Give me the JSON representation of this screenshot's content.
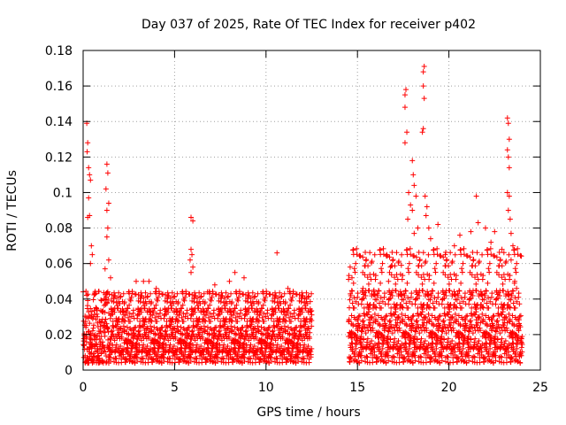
{
  "chart_data": {
    "type": "scatter",
    "title": "Day 037 of 2025, Rate Of TEC Index for receiver p402",
    "xlabel": "GPS time / hours",
    "ylabel": "ROTI / TECUs",
    "xlim": [
      0,
      25
    ],
    "ylim": [
      0,
      0.18
    ],
    "x_ticks": [
      0,
      5,
      10,
      15,
      20,
      25
    ],
    "x_tick_labels": [
      "0",
      "5",
      "10",
      "15",
      "20",
      "25"
    ],
    "y_ticks": [
      0,
      0.02,
      0.04,
      0.06,
      0.08,
      0.1,
      0.12,
      0.14,
      0.16,
      0.18
    ],
    "y_tick_labels": [
      "0",
      "0.02",
      "0.04",
      "0.06",
      "0.08",
      "0.1",
      "0.12",
      "0.14",
      "0.16",
      "0.18"
    ],
    "grid": true,
    "marker": "+",
    "marker_color": "#ff0000",
    "data_gap_hours": [
      12.5,
      14.5
    ],
    "series": [
      {
        "name": "ROTI",
        "segments": [
          {
            "x_start": 0.0,
            "x_end": 12.5,
            "baseline_range": [
              0.004,
              0.035
            ],
            "typical_max": 0.045
          },
          {
            "x_start": 14.5,
            "x_end": 24.0,
            "baseline_range": [
              0.004,
              0.045
            ],
            "typical_max": 0.07
          }
        ],
        "outliers": [
          {
            "x": 0.2,
            "y": 0.139
          },
          {
            "x": 0.25,
            "y": 0.128
          },
          {
            "x": 0.22,
            "y": 0.123
          },
          {
            "x": 0.3,
            "y": 0.114
          },
          {
            "x": 0.35,
            "y": 0.11
          },
          {
            "x": 0.4,
            "y": 0.107
          },
          {
            "x": 0.3,
            "y": 0.097
          },
          {
            "x": 0.35,
            "y": 0.087
          },
          {
            "x": 0.25,
            "y": 0.086
          },
          {
            "x": 0.45,
            "y": 0.07
          },
          {
            "x": 0.5,
            "y": 0.065
          },
          {
            "x": 0.4,
            "y": 0.06
          },
          {
            "x": 1.3,
            "y": 0.116
          },
          {
            "x": 1.35,
            "y": 0.111
          },
          {
            "x": 1.25,
            "y": 0.102
          },
          {
            "x": 1.4,
            "y": 0.094
          },
          {
            "x": 1.3,
            "y": 0.09
          },
          {
            "x": 1.35,
            "y": 0.08
          },
          {
            "x": 1.3,
            "y": 0.075
          },
          {
            "x": 1.4,
            "y": 0.062
          },
          {
            "x": 1.2,
            "y": 0.057
          },
          {
            "x": 1.5,
            "y": 0.052
          },
          {
            "x": 2.9,
            "y": 0.05
          },
          {
            "x": 3.3,
            "y": 0.05
          },
          {
            "x": 3.6,
            "y": 0.05
          },
          {
            "x": 4.0,
            "y": 0.046
          },
          {
            "x": 5.9,
            "y": 0.086
          },
          {
            "x": 6.0,
            "y": 0.084
          },
          {
            "x": 5.9,
            "y": 0.068
          },
          {
            "x": 5.95,
            "y": 0.065
          },
          {
            "x": 5.85,
            "y": 0.062
          },
          {
            "x": 6.0,
            "y": 0.058
          },
          {
            "x": 5.9,
            "y": 0.055
          },
          {
            "x": 6.8,
            "y": 0.044
          },
          {
            "x": 7.2,
            "y": 0.048
          },
          {
            "x": 8.0,
            "y": 0.05
          },
          {
            "x": 8.3,
            "y": 0.055
          },
          {
            "x": 8.8,
            "y": 0.052
          },
          {
            "x": 10.6,
            "y": 0.066
          },
          {
            "x": 11.2,
            "y": 0.046
          },
          {
            "x": 12.2,
            "y": 0.04
          },
          {
            "x": 14.6,
            "y": 0.058
          },
          {
            "x": 14.7,
            "y": 0.052
          },
          {
            "x": 15.3,
            "y": 0.046
          },
          {
            "x": 15.9,
            "y": 0.045
          },
          {
            "x": 16.6,
            "y": 0.065
          },
          {
            "x": 16.8,
            "y": 0.058
          },
          {
            "x": 16.7,
            "y": 0.05
          },
          {
            "x": 17.4,
            "y": 0.059
          },
          {
            "x": 17.6,
            "y": 0.155
          },
          {
            "x": 17.65,
            "y": 0.158
          },
          {
            "x": 17.6,
            "y": 0.148
          },
          {
            "x": 17.7,
            "y": 0.134
          },
          {
            "x": 17.6,
            "y": 0.128
          },
          {
            "x": 17.8,
            "y": 0.1
          },
          {
            "x": 17.9,
            "y": 0.093
          },
          {
            "x": 17.75,
            "y": 0.085
          },
          {
            "x": 18.0,
            "y": 0.118
          },
          {
            "x": 18.05,
            "y": 0.11
          },
          {
            "x": 18.1,
            "y": 0.104
          },
          {
            "x": 18.2,
            "y": 0.098
          },
          {
            "x": 18.0,
            "y": 0.09
          },
          {
            "x": 18.3,
            "y": 0.08
          },
          {
            "x": 18.1,
            "y": 0.077
          },
          {
            "x": 18.65,
            "y": 0.171
          },
          {
            "x": 18.6,
            "y": 0.168
          },
          {
            "x": 18.6,
            "y": 0.16
          },
          {
            "x": 18.65,
            "y": 0.153
          },
          {
            "x": 18.6,
            "y": 0.136
          },
          {
            "x": 18.55,
            "y": 0.134
          },
          {
            "x": 18.7,
            "y": 0.098
          },
          {
            "x": 18.8,
            "y": 0.092
          },
          {
            "x": 18.75,
            "y": 0.087
          },
          {
            "x": 18.9,
            "y": 0.08
          },
          {
            "x": 19.0,
            "y": 0.074
          },
          {
            "x": 19.4,
            "y": 0.082
          },
          {
            "x": 19.8,
            "y": 0.065
          },
          {
            "x": 20.3,
            "y": 0.07
          },
          {
            "x": 20.6,
            "y": 0.076
          },
          {
            "x": 21.2,
            "y": 0.078
          },
          {
            "x": 21.5,
            "y": 0.098
          },
          {
            "x": 21.6,
            "y": 0.083
          },
          {
            "x": 22.0,
            "y": 0.08
          },
          {
            "x": 22.3,
            "y": 0.072
          },
          {
            "x": 22.5,
            "y": 0.078
          },
          {
            "x": 22.9,
            "y": 0.068
          },
          {
            "x": 23.2,
            "y": 0.142
          },
          {
            "x": 23.25,
            "y": 0.139
          },
          {
            "x": 23.3,
            "y": 0.13
          },
          {
            "x": 23.2,
            "y": 0.124
          },
          {
            "x": 23.25,
            "y": 0.12
          },
          {
            "x": 23.3,
            "y": 0.114
          },
          {
            "x": 23.2,
            "y": 0.1
          },
          {
            "x": 23.3,
            "y": 0.098
          },
          {
            "x": 23.25,
            "y": 0.09
          },
          {
            "x": 23.35,
            "y": 0.085
          },
          {
            "x": 23.4,
            "y": 0.077
          },
          {
            "x": 23.5,
            "y": 0.07
          },
          {
            "x": 23.4,
            "y": 0.062
          },
          {
            "x": 23.6,
            "y": 0.05
          },
          {
            "x": 23.7,
            "y": 0.046
          }
        ]
      }
    ]
  }
}
